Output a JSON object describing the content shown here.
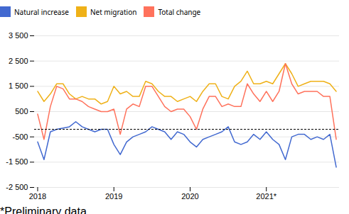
{
  "chart_data": {
    "type": "line",
    "categories": [
      "2018",
      null,
      null,
      null,
      null,
      null,
      null,
      null,
      null,
      null,
      null,
      null,
      "2019",
      null,
      null,
      null,
      null,
      null,
      null,
      null,
      null,
      null,
      null,
      null,
      "2020",
      null,
      null,
      null,
      null,
      null,
      null,
      null,
      null,
      null,
      null,
      null,
      "2021*",
      null,
      null,
      null,
      null,
      null,
      null,
      null,
      null,
      null,
      null,
      null
    ],
    "series": [
      {
        "name": "Natural increase",
        "values": [
          -700,
          -1400,
          -300,
          -200,
          -150,
          -100,
          100,
          -100,
          -200,
          -300,
          -200,
          -200,
          -800,
          -1200,
          -700,
          -500,
          -400,
          -300,
          -100,
          -200,
          -300,
          -600,
          -300,
          -400,
          -700,
          -900,
          -600,
          -500,
          -400,
          -300,
          -100,
          -700,
          -800,
          -700,
          -400,
          -600,
          -300,
          -600,
          -800,
          -1400,
          -500,
          -400,
          -400,
          -600,
          -500,
          -600,
          -400,
          -1700
        ]
      },
      {
        "name": "Net migration",
        "values": [
          1300,
          900,
          1200,
          1600,
          1600,
          1200,
          1000,
          1100,
          1000,
          1000,
          800,
          900,
          1500,
          1200,
          1300,
          1100,
          1100,
          1700,
          1600,
          1300,
          1100,
          1100,
          900,
          1000,
          1100,
          900,
          1300,
          1600,
          1600,
          1100,
          1000,
          1500,
          1700,
          2100,
          1600,
          1600,
          1700,
          1600,
          2000,
          2400,
          2000,
          1500,
          1600,
          1700,
          1700,
          1700,
          1600,
          1300
        ]
      },
      {
        "name": "Total change",
        "values": [
          400,
          -600,
          700,
          1500,
          1400,
          1000,
          1000,
          900,
          700,
          600,
          500,
          500,
          600,
          -400,
          600,
          800,
          700,
          1500,
          1500,
          1100,
          700,
          500,
          600,
          600,
          300,
          -200,
          600,
          1100,
          1100,
          700,
          800,
          700,
          700,
          1600,
          1200,
          900,
          1300,
          900,
          1300,
          2400,
          1600,
          1200,
          1300,
          1300,
          1300,
          1100,
          1100,
          -600
        ]
      }
    ],
    "ylim": [
      -2500,
      3500
    ],
    "yticks": [
      {
        "value": -2500,
        "label": "-2 500"
      },
      {
        "value": -1500,
        "label": "-1 500"
      },
      -500,
      500,
      {
        "value": 1500,
        "label": "1 500"
      },
      {
        "value": 2500,
        "label": "2 500"
      },
      {
        "value": 3500,
        "label": "3 500"
      }
    ],
    "hline_y": -200,
    "grid": true,
    "legend": "upper left",
    "footnote": "*Preliminary data"
  }
}
